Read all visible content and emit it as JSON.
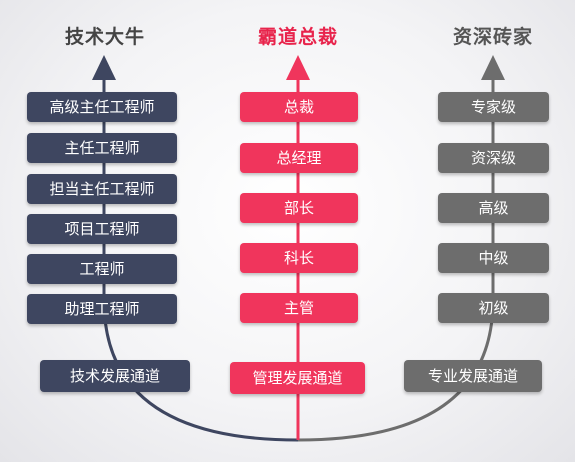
{
  "colors": {
    "technical": "#3e4660",
    "management": "#f0355c",
    "professional": "#6d6d6d",
    "technical_title": "#444444",
    "management_title": "#e8244c",
    "professional_title": "#555555"
  },
  "technical": {
    "title": "技术大牛",
    "levels": [
      "高级主任工程师",
      "主任工程师",
      "担当主任工程师",
      "项目工程师",
      "工程师",
      "助理工程师"
    ],
    "channel": "技术发展通道"
  },
  "management": {
    "title": "霸道总裁",
    "levels": [
      "总裁",
      "总经理",
      "部长",
      "科长",
      "主管"
    ],
    "channel": "管理发展通道"
  },
  "professional": {
    "title": "资深砖家",
    "levels": [
      "专家级",
      "资深级",
      "高级",
      "中级",
      "初级"
    ],
    "channel": "专业发展通道"
  }
}
